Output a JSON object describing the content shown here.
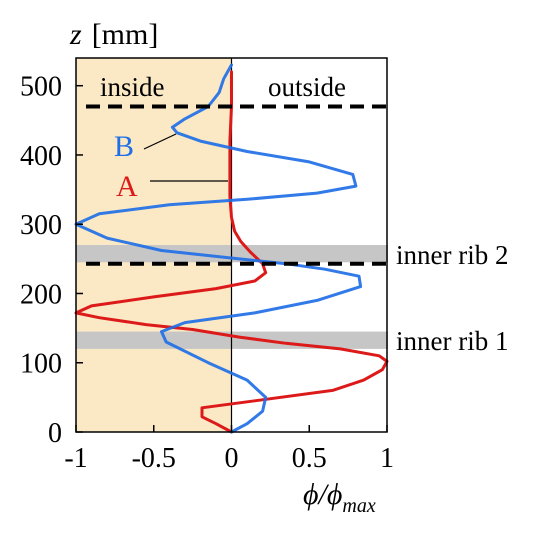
{
  "chart_data": {
    "type": "line",
    "xlabel": "ϕ/ϕ",
    "xlabel_sub": "max",
    "ylabel": "z",
    "ylabel_unit": "[mm]",
    "xlim": [
      -1,
      1
    ],
    "ylim": [
      0,
      550
    ],
    "x_ticks": [
      -1,
      -0.5,
      0,
      0.5,
      1
    ],
    "x_tick_labels": [
      "-1",
      "-0.5",
      "0",
      "0.5",
      "1"
    ],
    "y_ticks": [
      0,
      100,
      200,
      300,
      400,
      500
    ],
    "y_tick_labels": [
      "0",
      "100",
      "200",
      "300",
      "400",
      "500"
    ],
    "regions": [
      {
        "label": "inside",
        "x_range": [
          -1,
          0
        ],
        "color": "#fbe8c4"
      },
      {
        "label": "outside",
        "x_range": [
          0,
          1
        ],
        "color": "#ffffff"
      }
    ],
    "bands": [
      {
        "label": "inner rib 2",
        "y_range": [
          245,
          270
        ],
        "color": "#c6c6c6"
      },
      {
        "label": "inner rib 1",
        "y_range": [
          120,
          145
        ],
        "color": "#c6c6c6"
      }
    ],
    "dashed_lines": [
      {
        "y": 470
      },
      {
        "y": 243
      }
    ],
    "series": [
      {
        "name": "A",
        "color": "#dd1a1a",
        "points": [
          [
            0,
            0
          ],
          [
            -0.1,
            12
          ],
          [
            -0.19,
            22
          ],
          [
            -0.19,
            35
          ],
          [
            0.15,
            45
          ],
          [
            0.65,
            60
          ],
          [
            0.85,
            75
          ],
          [
            0.97,
            90
          ],
          [
            1.0,
            102
          ],
          [
            0.95,
            110
          ],
          [
            0.7,
            120
          ],
          [
            0.35,
            128
          ],
          [
            0.05,
            137
          ],
          [
            -0.25,
            148
          ],
          [
            -0.55,
            155
          ],
          [
            -0.85,
            165
          ],
          [
            -1.0,
            172
          ],
          [
            -0.9,
            182
          ],
          [
            -0.5,
            195
          ],
          [
            -0.1,
            207
          ],
          [
            0.15,
            218
          ],
          [
            0.22,
            230
          ],
          [
            0.2,
            243
          ],
          [
            0.12,
            260
          ],
          [
            0.06,
            275
          ],
          [
            0.02,
            290
          ],
          [
            0.0,
            310
          ],
          [
            -0.01,
            340
          ],
          [
            -0.01,
            380
          ],
          [
            -0.01,
            420
          ],
          [
            0.0,
            470
          ],
          [
            0.0,
            520
          ]
        ]
      },
      {
        "name": "B",
        "color": "#1f6fe6",
        "points": [
          [
            0,
            0
          ],
          [
            0.1,
            12
          ],
          [
            0.2,
            30
          ],
          [
            0.22,
            50
          ],
          [
            0.1,
            75
          ],
          [
            -0.15,
            100
          ],
          [
            -0.42,
            130
          ],
          [
            -0.45,
            145
          ],
          [
            -0.3,
            158
          ],
          [
            0.15,
            172
          ],
          [
            0.55,
            190
          ],
          [
            0.83,
            210
          ],
          [
            0.82,
            225
          ],
          [
            0.6,
            235
          ],
          [
            0.35,
            243
          ],
          [
            0.05,
            250
          ],
          [
            -0.45,
            262
          ],
          [
            -0.8,
            280
          ],
          [
            -1.0,
            300
          ],
          [
            -0.85,
            315
          ],
          [
            -0.4,
            328
          ],
          [
            0.1,
            336
          ],
          [
            0.55,
            345
          ],
          [
            0.8,
            355
          ],
          [
            0.78,
            372
          ],
          [
            0.5,
            390
          ],
          [
            0.1,
            405
          ],
          [
            -0.2,
            420
          ],
          [
            -0.35,
            432
          ],
          [
            -0.38,
            440
          ],
          [
            -0.3,
            452
          ],
          [
            -0.15,
            470
          ],
          [
            -0.08,
            490
          ],
          [
            -0.05,
            510
          ],
          [
            0.0,
            530
          ]
        ]
      }
    ],
    "annotations": [
      {
        "text": "B",
        "color": "#1f6fe6"
      },
      {
        "text": "A",
        "color": "#dd1a1a"
      }
    ]
  }
}
